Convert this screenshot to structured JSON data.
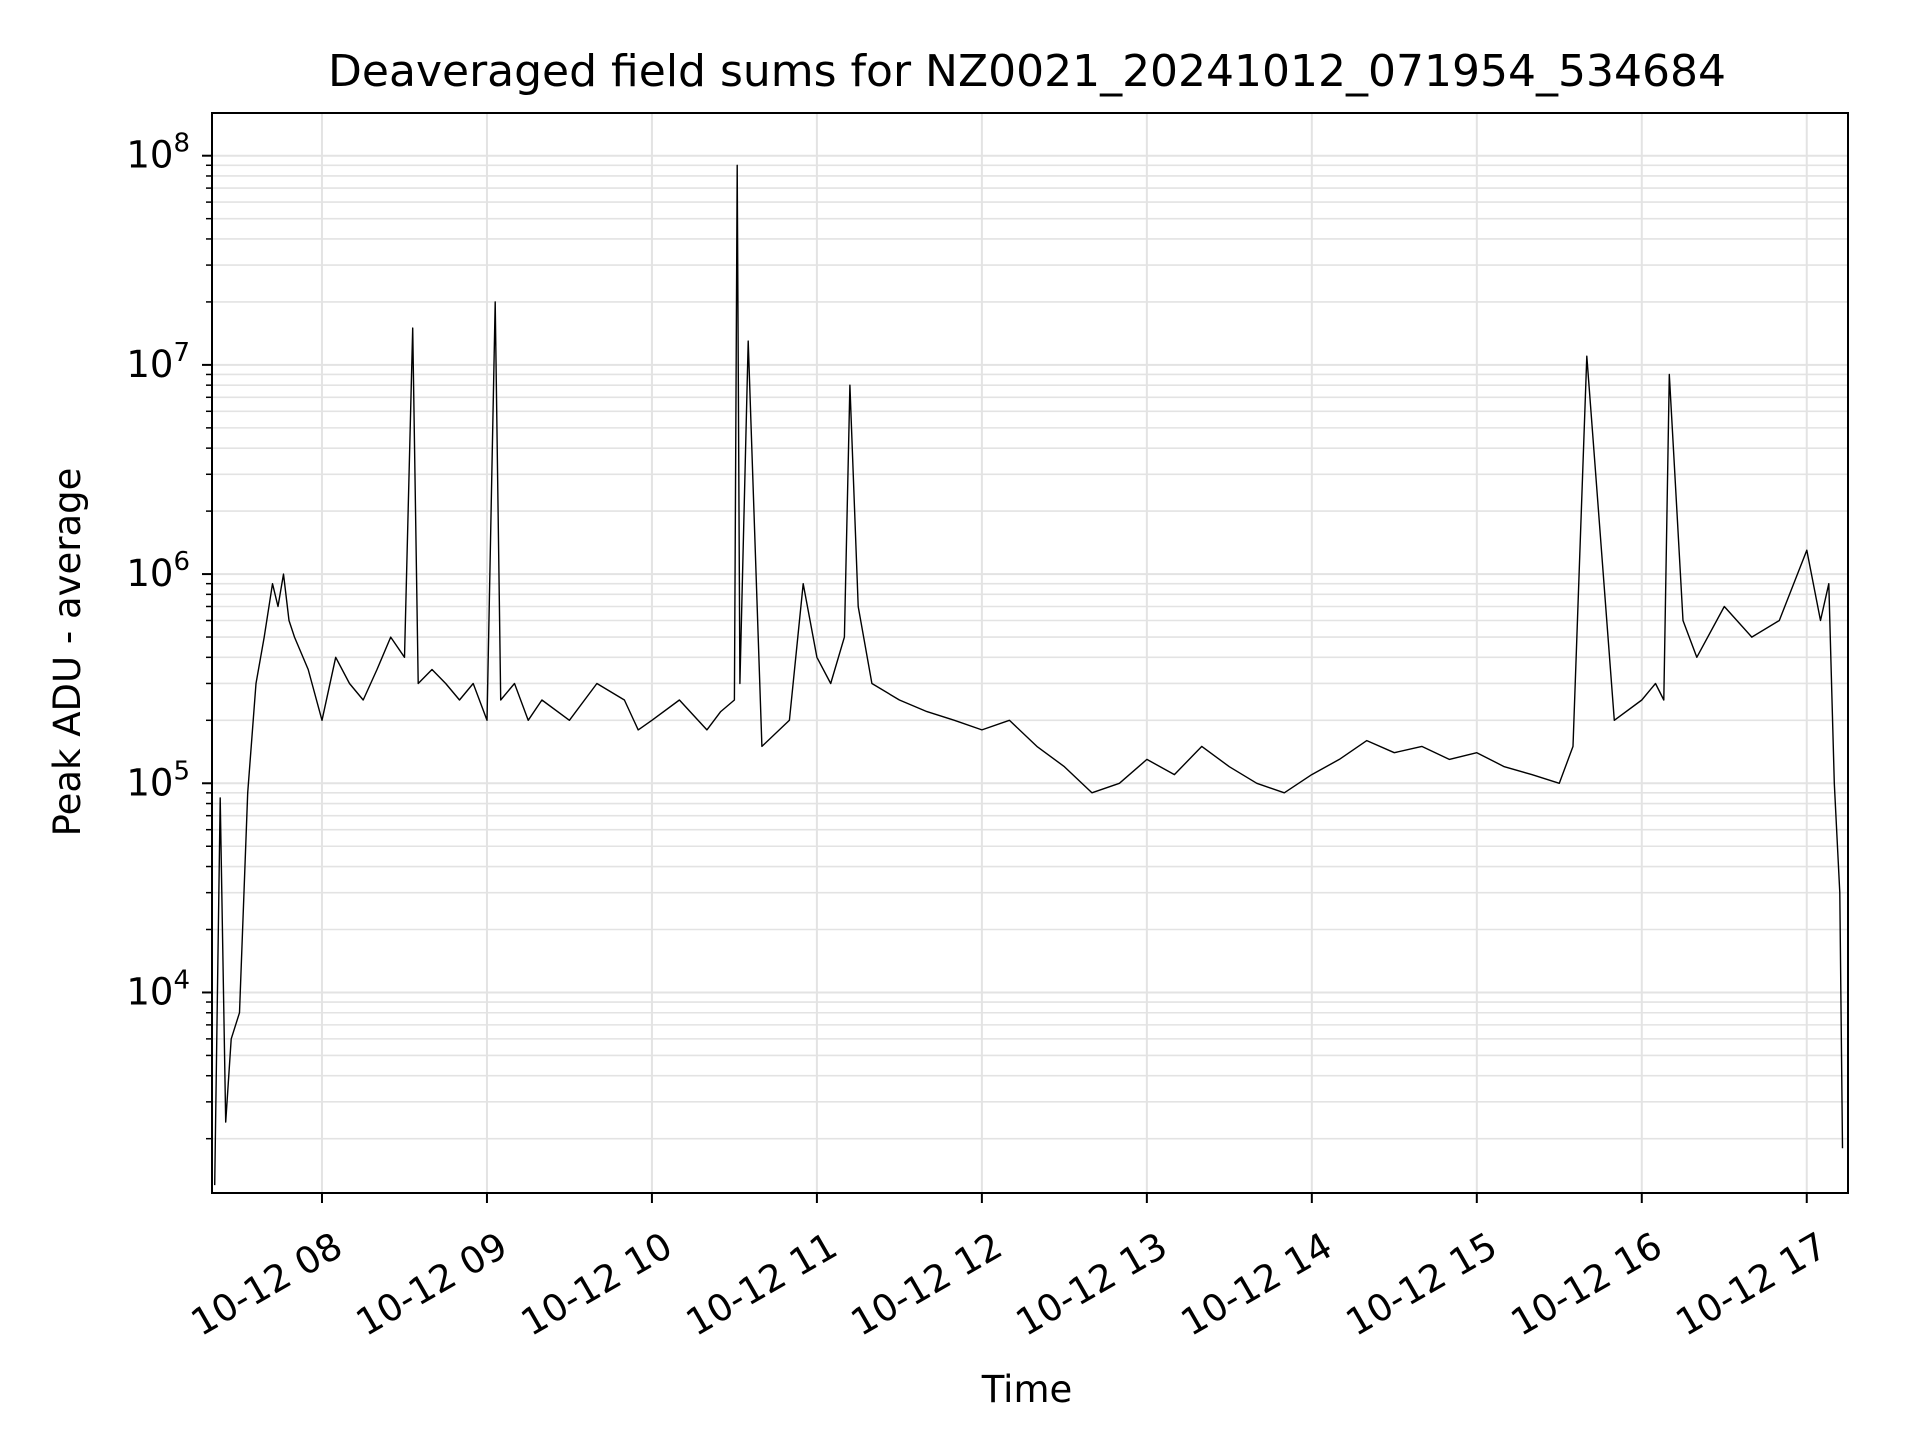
{
  "chart_data": {
    "type": "line",
    "title": "Deaveraged field sums for NZ0021_20241012_071954_534684",
    "xlabel": "Time",
    "ylabel": "Peak ADU - average",
    "yscale": "log",
    "grid": true,
    "line_color": "#000000",
    "grid_color": "#e3e3e3",
    "xlim": [
      "2024-10-12 07:20",
      "2024-10-12 17:15"
    ],
    "ylim": [
      1100,
      160000000
    ],
    "x_ticks": [
      {
        "value": "2024-10-12 08:00",
        "label": "10-12 08"
      },
      {
        "value": "2024-10-12 09:00",
        "label": "10-12 09"
      },
      {
        "value": "2024-10-12 10:00",
        "label": "10-12 10"
      },
      {
        "value": "2024-10-12 11:00",
        "label": "10-12 11"
      },
      {
        "value": "2024-10-12 12:00",
        "label": "10-12 12"
      },
      {
        "value": "2024-10-12 13:00",
        "label": "10-12 13"
      },
      {
        "value": "2024-10-12 14:00",
        "label": "10-12 14"
      },
      {
        "value": "2024-10-12 15:00",
        "label": "10-12 15"
      },
      {
        "value": "2024-10-12 16:00",
        "label": "10-12 16"
      },
      {
        "value": "2024-10-12 17:00",
        "label": "10-12 17"
      }
    ],
    "y_ticks": [
      {
        "value": 10000,
        "base": "10",
        "exp": "4"
      },
      {
        "value": 100000,
        "base": "10",
        "exp": "5"
      },
      {
        "value": 1000000,
        "base": "10",
        "exp": "6"
      },
      {
        "value": 10000000,
        "base": "10",
        "exp": "7"
      },
      {
        "value": 100000000,
        "base": "10",
        "exp": "8"
      }
    ],
    "series": [
      {
        "x": [
          "2024-10-12 07:21",
          "2024-10-12 07:23",
          "2024-10-12 07:25",
          "2024-10-12 07:27",
          "2024-10-12 07:30",
          "2024-10-12 07:33",
          "2024-10-12 07:36",
          "2024-10-12 07:39",
          "2024-10-12 07:42",
          "2024-10-12 07:44",
          "2024-10-12 07:46",
          "2024-10-12 07:48",
          "2024-10-12 07:50",
          "2024-10-12 07:55",
          "2024-10-12 08:00",
          "2024-10-12 08:05",
          "2024-10-12 08:10",
          "2024-10-12 08:15",
          "2024-10-12 08:20",
          "2024-10-12 08:25",
          "2024-10-12 08:30",
          "2024-10-12 08:33",
          "2024-10-12 08:35",
          "2024-10-12 08:40",
          "2024-10-12 08:45",
          "2024-10-12 08:50",
          "2024-10-12 08:55",
          "2024-10-12 09:00",
          "2024-10-12 09:03",
          "2024-10-12 09:05",
          "2024-10-12 09:10",
          "2024-10-12 09:15",
          "2024-10-12 09:20",
          "2024-10-12 09:30",
          "2024-10-12 09:40",
          "2024-10-12 09:50",
          "2024-10-12 09:55",
          "2024-10-12 10:00",
          "2024-10-12 10:10",
          "2024-10-12 10:20",
          "2024-10-12 10:25",
          "2024-10-12 10:30",
          "2024-10-12 10:31",
          "2024-10-12 10:32",
          "2024-10-12 10:35",
          "2024-10-12 10:40",
          "2024-10-12 10:50",
          "2024-10-12 10:55",
          "2024-10-12 11:00",
          "2024-10-12 11:05",
          "2024-10-12 11:10",
          "2024-10-12 11:12",
          "2024-10-12 11:15",
          "2024-10-12 11:20",
          "2024-10-12 11:30",
          "2024-10-12 11:40",
          "2024-10-12 11:50",
          "2024-10-12 12:00",
          "2024-10-12 12:10",
          "2024-10-12 12:20",
          "2024-10-12 12:30",
          "2024-10-12 12:40",
          "2024-10-12 12:50",
          "2024-10-12 13:00",
          "2024-10-12 13:10",
          "2024-10-12 13:20",
          "2024-10-12 13:30",
          "2024-10-12 13:40",
          "2024-10-12 13:50",
          "2024-10-12 14:00",
          "2024-10-12 14:10",
          "2024-10-12 14:20",
          "2024-10-12 14:30",
          "2024-10-12 14:40",
          "2024-10-12 14:50",
          "2024-10-12 15:00",
          "2024-10-12 15:10",
          "2024-10-12 15:20",
          "2024-10-12 15:30",
          "2024-10-12 15:35",
          "2024-10-12 15:40",
          "2024-10-12 15:50",
          "2024-10-12 16:00",
          "2024-10-12 16:05",
          "2024-10-12 16:08",
          "2024-10-12 16:10",
          "2024-10-12 16:15",
          "2024-10-12 16:20",
          "2024-10-12 16:30",
          "2024-10-12 16:40",
          "2024-10-12 16:50",
          "2024-10-12 17:00",
          "2024-10-12 17:05",
          "2024-10-12 17:08",
          "2024-10-12 17:10",
          "2024-10-12 17:12",
          "2024-10-12 17:13"
        ],
        "y": [
          1200,
          85000,
          2400,
          6000,
          8000,
          90000,
          300000,
          500000,
          900000,
          700000,
          1000000,
          600000,
          500000,
          350000,
          200000,
          400000,
          300000,
          250000,
          350000,
          500000,
          400000,
          15000000,
          300000,
          350000,
          300000,
          250000,
          300000,
          200000,
          20000000,
          250000,
          300000,
          200000,
          250000,
          200000,
          300000,
          250000,
          180000,
          200000,
          250000,
          180000,
          220000,
          250000,
          90000000,
          300000,
          13000000,
          150000,
          200000,
          900000,
          400000,
          300000,
          500000,
          8000000,
          700000,
          300000,
          250000,
          220000,
          200000,
          180000,
          200000,
          150000,
          120000,
          90000,
          100000,
          130000,
          110000,
          150000,
          120000,
          100000,
          90000,
          110000,
          130000,
          160000,
          140000,
          150000,
          130000,
          140000,
          120000,
          110000,
          100000,
          150000,
          11000000,
          200000,
          250000,
          300000,
          250000,
          9000000,
          600000,
          400000,
          700000,
          500000,
          600000,
          1300000,
          600000,
          900000,
          100000,
          30000,
          1800
        ]
      }
    ]
  }
}
